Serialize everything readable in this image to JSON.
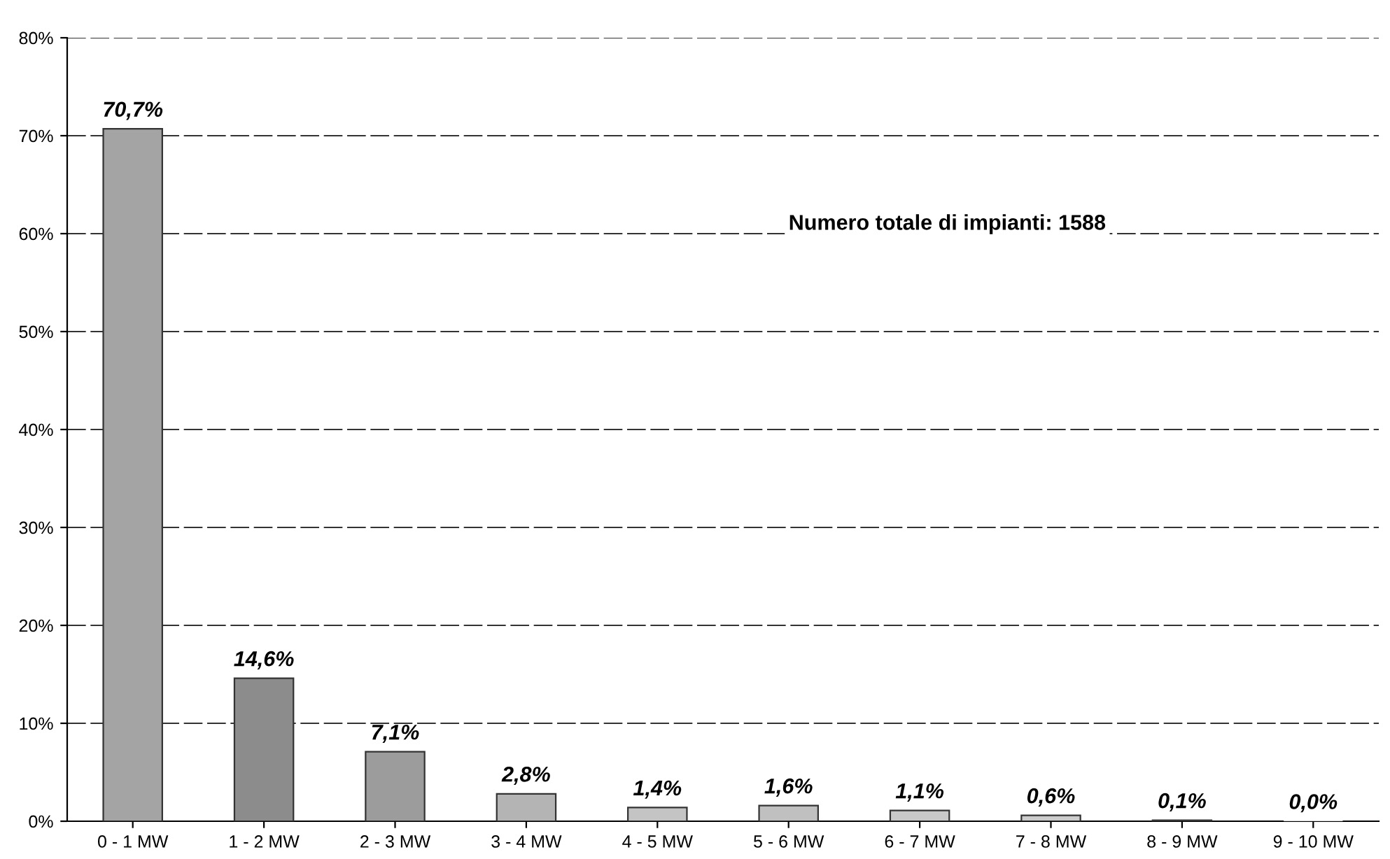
{
  "chart_data": {
    "type": "bar",
    "categories": [
      "0 - 1 MW",
      "1 - 2 MW",
      "2 - 3 MW",
      "3 - 4 MW",
      "4 - 5 MW",
      "5 - 6 MW",
      "6 - 7 MW",
      "7 - 8 MW",
      "8 - 9 MW",
      "9 - 10 MW"
    ],
    "values": [
      70.7,
      14.6,
      7.1,
      2.8,
      1.4,
      1.6,
      1.1,
      0.6,
      0.1,
      0.0
    ],
    "value_labels": [
      "70,7%",
      "14,6%",
      "7,1%",
      "2,8%",
      "1,4%",
      "1,6%",
      "1,1%",
      "0,6%",
      "0,1%",
      "0,0%"
    ],
    "colors": [
      "#a4a4a4",
      "#8c8c8c",
      "#9c9c9c",
      "#b4b4b4",
      "#c4c4c4",
      "#c0c0c0",
      "#c8c8c8",
      "#cccccc",
      "#d0d0d0",
      "#d4d4d4"
    ],
    "ylim": [
      0,
      80
    ],
    "yticks": [
      {
        "value": 0,
        "label": "0%"
      },
      {
        "value": 10,
        "label": "10%"
      },
      {
        "value": 20,
        "label": "20%"
      },
      {
        "value": 30,
        "label": "30%"
      },
      {
        "value": 40,
        "label": "40%"
      },
      {
        "value": 50,
        "label": "50%"
      },
      {
        "value": 60,
        "label": "60%"
      },
      {
        "value": 70,
        "label": "70%"
      },
      {
        "value": 80,
        "label": "80%"
      }
    ],
    "grid": "y",
    "annotations": [
      "Numero totale di impianti: 1588"
    ]
  }
}
